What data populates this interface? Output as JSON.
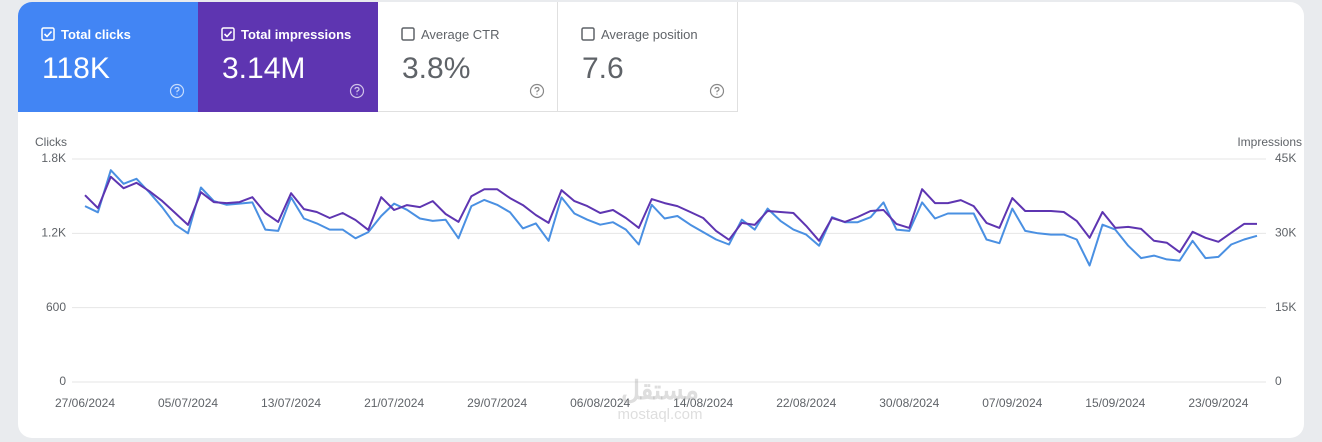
{
  "tiles": [
    {
      "label": "Total clicks",
      "value": "118K",
      "checked": true,
      "color": "#4285f4"
    },
    {
      "label": "Total impressions",
      "value": "3.14M",
      "checked": true,
      "color": "#5e35b1"
    },
    {
      "label": "Average CTR",
      "value": "3.8%",
      "checked": false,
      "color": "#ffffff"
    },
    {
      "label": "Average position",
      "value": "7.6",
      "checked": false,
      "color": "#ffffff"
    }
  ],
  "watermark": {
    "arabic": "مستقل",
    "latin": "mostaql.com"
  },
  "chart_data": {
    "type": "line",
    "ylabel": "Clicks",
    "y2label": "Impressions",
    "categories": [
      "27/06/2024",
      null,
      null,
      null,
      null,
      null,
      null,
      null,
      "05/07/2024",
      null,
      null,
      null,
      null,
      null,
      null,
      null,
      "13/07/2024",
      null,
      null,
      null,
      null,
      null,
      null,
      null,
      "21/07/2024",
      null,
      null,
      null,
      null,
      null,
      null,
      null,
      "29/07/2024",
      null,
      null,
      null,
      null,
      null,
      null,
      null,
      "06/08/2024",
      null,
      null,
      null,
      null,
      null,
      null,
      null,
      "14/08/2024",
      null,
      null,
      null,
      null,
      null,
      null,
      null,
      "22/08/2024",
      null,
      null,
      null,
      null,
      null,
      null,
      null,
      "30/08/2024",
      null,
      null,
      null,
      null,
      null,
      null,
      null,
      "07/09/2024",
      null,
      null,
      null,
      null,
      null,
      null,
      null,
      "15/09/2024",
      null,
      null,
      null,
      null,
      null,
      null,
      null,
      "23/09/2024",
      null,
      null,
      null
    ],
    "series": [
      {
        "color": "#4a90e2",
        "axis": "y",
        "values": [
          1420,
          1370,
          1710,
          1600,
          1640,
          1530,
          1410,
          1270,
          1200,
          1570,
          1460,
          1430,
          1440,
          1450,
          1230,
          1220,
          1490,
          1320,
          1280,
          1230,
          1230,
          1160,
          1210,
          1340,
          1440,
          1390,
          1320,
          1300,
          1310,
          1160,
          1420,
          1470,
          1430,
          1370,
          1240,
          1280,
          1140,
          1490,
          1360,
          1310,
          1270,
          1290,
          1230,
          1110,
          1430,
          1320,
          1340,
          1270,
          1210,
          1150,
          1110,
          1310,
          1230,
          1400,
          1300,
          1230,
          1190,
          1100,
          1330,
          1290,
          1290,
          1330,
          1450,
          1230,
          1220,
          1450,
          1320,
          1360,
          1360,
          1360,
          1150,
          1120,
          1400,
          1220,
          1200,
          1190,
          1190,
          1150,
          940,
          1270,
          1230,
          1100,
          1000,
          1020,
          990,
          980,
          1140,
          1000,
          1010,
          1110,
          1150,
          1180
        ]
      },
      {
        "color": "#5e35b1",
        "axis": "y2",
        "values": [
          37700,
          35100,
          41400,
          39100,
          40200,
          38500,
          36500,
          34100,
          31700,
          38300,
          36300,
          36100,
          36300,
          37300,
          34100,
          32300,
          38100,
          34900,
          34300,
          33100,
          34100,
          32700,
          30700,
          37300,
          34700,
          35700,
          35300,
          36500,
          33900,
          32300,
          37500,
          38900,
          38900,
          37100,
          35700,
          33700,
          32100,
          38700,
          36500,
          35500,
          34100,
          34700,
          33100,
          31100,
          36900,
          36100,
          35500,
          34300,
          33100,
          30500,
          28700,
          32100,
          31700,
          34500,
          34300,
          34100,
          31500,
          28500,
          33100,
          32300,
          33300,
          34500,
          34700,
          31900,
          31100,
          38900,
          36100,
          36100,
          36700,
          35500,
          32100,
          31100,
          37100,
          34500,
          34500,
          34500,
          34300,
          32500,
          29100,
          34300,
          31100,
          31300,
          30900,
          28500,
          28100,
          26200,
          30300,
          29100,
          28300,
          30100,
          31900,
          31900
        ]
      }
    ],
    "ylim": [
      0,
      1800
    ],
    "yticks": [
      0,
      600,
      {
        "value": 1200,
        "label": "1.2K"
      },
      {
        "value": 1800,
        "label": "1.8K"
      }
    ],
    "y2lim": [
      0,
      45000
    ],
    "y2ticks": [
      0,
      {
        "value": 15000,
        "label": "15K"
      },
      {
        "value": 30000,
        "label": "30K"
      },
      {
        "value": 45000,
        "label": "45K"
      }
    ],
    "grid": true
  }
}
